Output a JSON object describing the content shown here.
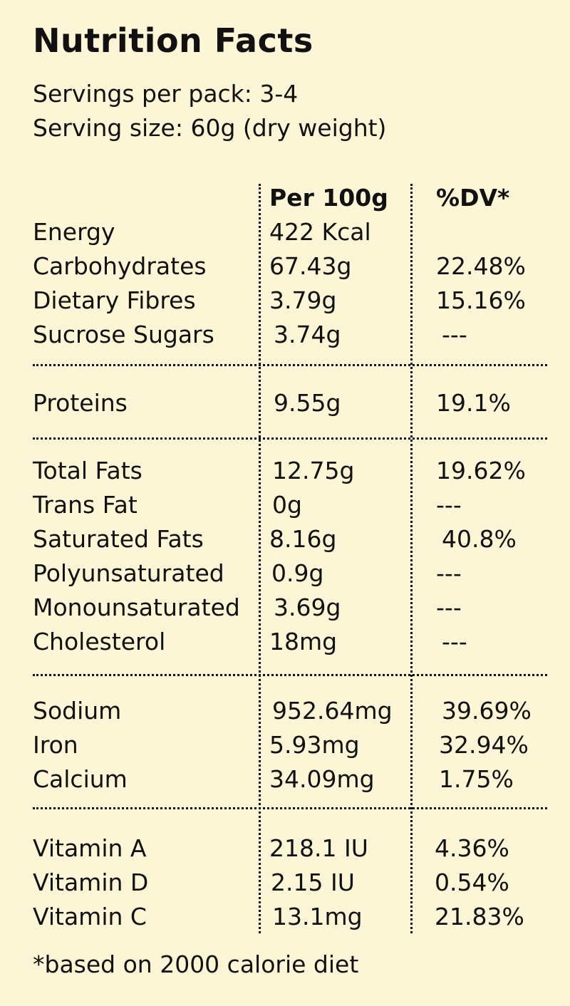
{
  "title": "Nutrition Facts",
  "servings_per_pack": "Servings per pack: 3-4",
  "serving_size": "Serving size: 60g (dry weight)",
  "columns": {
    "per": "Per 100g",
    "dv": "%DV*"
  },
  "groups": [
    {
      "rows": [
        {
          "name": "Energy",
          "per": "422 Kcal",
          "dv": ""
        },
        {
          "name": "Carbohydrates",
          "per": "67.43g",
          "dv": "22.48%"
        },
        {
          "name": "Dietary Fibres",
          "per": "3.79g",
          "dv": "15.16%"
        },
        {
          "name": "Sucrose Sugars",
          "per": "3.74g",
          "dv": "---"
        }
      ]
    },
    {
      "rows": [
        {
          "name": "Proteins",
          "per": "9.55g",
          "dv": "19.1%"
        }
      ]
    },
    {
      "rows": [
        {
          "name": "Total Fats",
          "per": "12.75g",
          "dv": "19.62%"
        },
        {
          "name": "Trans Fat",
          "per": "0g",
          "dv": "---"
        },
        {
          "name": "Saturated Fats",
          "per": "8.16g",
          "dv": "40.8%"
        },
        {
          "name": "Polyunsaturated",
          "per": "0.9g",
          "dv": "---"
        },
        {
          "name": "Monounsaturated",
          "per": "3.69g",
          "dv": "---"
        },
        {
          "name": "Cholesterol",
          "per": "18mg",
          "dv": "---"
        }
      ]
    },
    {
      "rows": [
        {
          "name": "Sodium",
          "per": "952.64mg",
          "dv": "39.69%"
        },
        {
          "name": "Iron",
          "per": "5.93mg",
          "dv": "32.94%"
        },
        {
          "name": "Calcium",
          "per": "34.09mg",
          "dv": "1.75%"
        }
      ]
    },
    {
      "rows": [
        {
          "name": "Vitamin A",
          "per": "218.1 IU",
          "dv": "4.36%"
        },
        {
          "name": "Vitamin D",
          "per": "2.15 IU",
          "dv": "0.54%"
        },
        {
          "name": "Vitamin C",
          "per": "13.1mg",
          "dv": "21.83%"
        }
      ]
    }
  ],
  "footnote": "*based on 2000 calorie diet"
}
